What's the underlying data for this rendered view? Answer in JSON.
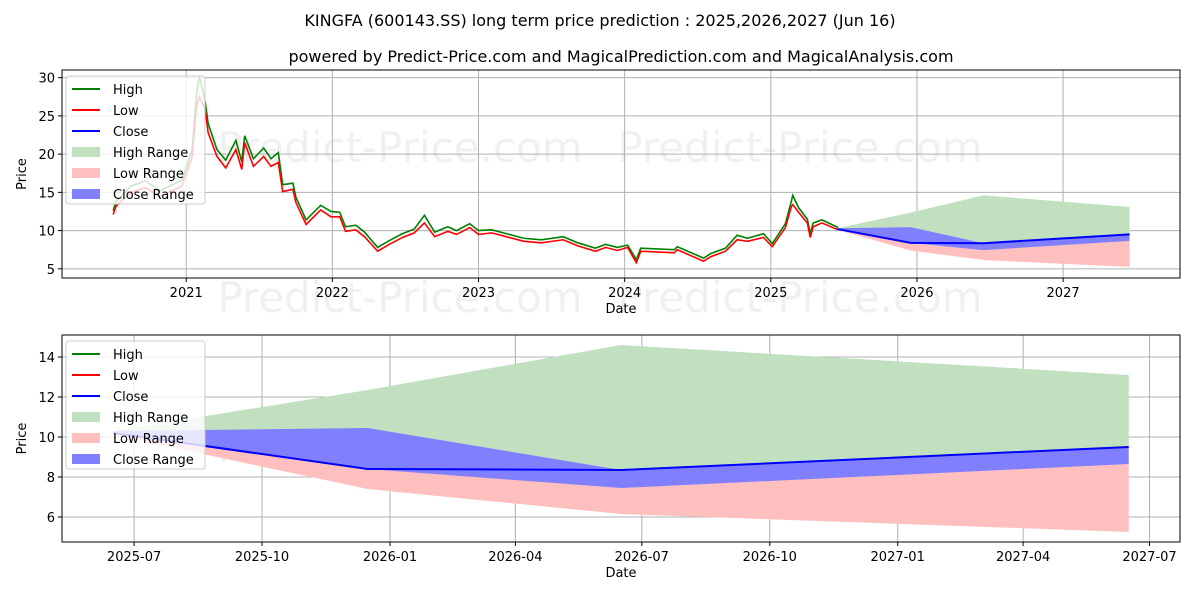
{
  "title": "KINGFA (600143.SS) long term price prediction : 2025,2026,2027 (Jun 16)",
  "subtitle": "powered by Predict-Price.com and MagicalPrediction.com and MagicalAnalysis.com",
  "watermark": "Predict-Price.com",
  "colors": {
    "high": "#008000",
    "low": "#ff0000",
    "close": "#0000ff",
    "high_range": "#c0e0c0",
    "low_range": "#ffbfbf",
    "close_range": "#8080ff"
  },
  "legend": [
    "High",
    "Low",
    "Close",
    "High Range",
    "Low Range",
    "Close Range"
  ],
  "chart_data": [
    {
      "type": "line",
      "xlabel": "Date",
      "ylabel": "Price",
      "xlim": [
        2020.15,
        2027.8
      ],
      "ylim": [
        3.8,
        31
      ],
      "grid": true,
      "legend_position": "top-left",
      "xticks": [
        {
          "v": 2021,
          "label": "2021"
        },
        {
          "v": 2022,
          "label": "2022"
        },
        {
          "v": 2023,
          "label": "2023"
        },
        {
          "v": 2024,
          "label": "2024"
        },
        {
          "v": 2025,
          "label": "2025"
        },
        {
          "v": 2026,
          "label": "2026"
        },
        {
          "v": 2027,
          "label": "2027"
        }
      ],
      "yticks": [
        {
          "v": 5,
          "label": "5"
        },
        {
          "v": 10,
          "label": "10"
        },
        {
          "v": 15,
          "label": "15"
        },
        {
          "v": 20,
          "label": "20"
        },
        {
          "v": 25,
          "label": "25"
        },
        {
          "v": 30,
          "label": "30"
        }
      ],
      "history_x": [
        2020.5,
        2020.52,
        2020.62,
        2020.72,
        2020.82,
        2020.97,
        2021.04,
        2021.07,
        2021.09,
        2021.13,
        2021.15,
        2021.21,
        2021.27,
        2021.34,
        2021.38,
        2021.4,
        2021.46,
        2021.53,
        2021.58,
        2021.63,
        2021.66,
        2021.73,
        2021.75,
        2021.82,
        2021.92,
        2021.99,
        2022.05,
        2022.09,
        2022.16,
        2022.22,
        2022.31,
        2022.39,
        2022.48,
        2022.56,
        2022.63,
        2022.7,
        2022.79,
        2022.85,
        2022.94,
        2023.0,
        2023.09,
        2023.19,
        2023.31,
        2023.43,
        2023.58,
        2023.68,
        2023.8,
        2023.87,
        2023.95,
        2024.02,
        2024.08,
        2024.11,
        2024.34,
        2024.36,
        2024.54,
        2024.59,
        2024.69,
        2024.77,
        2024.84,
        2024.95,
        2025.01,
        2025.1,
        2025.14,
        2025.15,
        2025.19,
        2025.25,
        2025.27,
        2025.29,
        2025.35,
        2025.46
      ],
      "high": [
        12.6,
        13.8,
        15.8,
        16.5,
        15.2,
        16.6,
        20.5,
        27.8,
        30.2,
        26.8,
        24.0,
        20.6,
        19.2,
        21.8,
        19.0,
        22.4,
        19.4,
        20.8,
        19.4,
        20.2,
        16.0,
        16.2,
        14.4,
        11.4,
        13.3,
        12.5,
        12.4,
        10.5,
        10.7,
        9.8,
        7.8,
        8.7,
        9.6,
        10.2,
        12.0,
        9.8,
        10.5,
        10.0,
        10.9,
        10.0,
        10.1,
        9.6,
        9.0,
        8.8,
        9.2,
        8.4,
        7.7,
        8.2,
        7.8,
        8.1,
        6.2,
        7.7,
        7.5,
        7.9,
        6.4,
        7.0,
        7.7,
        9.4,
        9.0,
        9.6,
        8.3,
        10.9,
        13.8,
        14.6,
        13.0,
        11.5,
        9.6,
        11.0,
        11.4,
        10.4
      ],
      "low": [
        12.1,
        13.2,
        15.0,
        15.6,
        14.5,
        15.8,
        19.6,
        26.2,
        27.5,
        25.8,
        22.8,
        19.7,
        18.2,
        20.6,
        18.0,
        21.5,
        18.4,
        19.7,
        18.4,
        18.9,
        15.1,
        15.4,
        13.7,
        10.8,
        12.7,
        11.8,
        11.8,
        9.9,
        10.1,
        9.2,
        7.3,
        8.2,
        9.1,
        9.7,
        11.0,
        9.2,
        9.9,
        9.5,
        10.4,
        9.5,
        9.7,
        9.2,
        8.6,
        8.4,
        8.8,
        8.0,
        7.3,
        7.8,
        7.4,
        7.8,
        5.8,
        7.3,
        7.1,
        7.5,
        6.0,
        6.6,
        7.3,
        8.8,
        8.6,
        9.1,
        7.9,
        10.4,
        13.1,
        13.4,
        12.4,
        11.0,
        9.1,
        10.5,
        11.0,
        10.1
      ]
    },
    {
      "type": "area",
      "xlabel": "Date",
      "ylabel": "Price",
      "xlim": [
        2025.354,
        2027.556
      ],
      "ylim": [
        4.75,
        15.1
      ],
      "grid": true,
      "legend_position": "top-left",
      "xticks": [
        {
          "v": 2025.496,
          "label": "2025-07"
        },
        {
          "v": 2025.748,
          "label": "2025-10"
        },
        {
          "v": 2026.0,
          "label": "2026-01"
        },
        {
          "v": 2026.247,
          "label": "2026-04"
        },
        {
          "v": 2026.496,
          "label": "2026-07"
        },
        {
          "v": 2026.748,
          "label": "2026-10"
        },
        {
          "v": 2027.0,
          "label": "2027-01"
        },
        {
          "v": 2027.247,
          "label": "2027-04"
        },
        {
          "v": 2027.496,
          "label": "2027-07"
        }
      ],
      "yticks": [
        {
          "v": 6,
          "label": "6"
        },
        {
          "v": 8,
          "label": "8"
        },
        {
          "v": 10,
          "label": "10"
        },
        {
          "v": 12,
          "label": "12"
        },
        {
          "v": 14,
          "label": "14"
        }
      ]
    }
  ],
  "forecast": {
    "dates": [
      "2025-06-16",
      "2025-12-16",
      "2026-06-16",
      "2027-06-16"
    ],
    "x": [
      2025.455,
      2025.956,
      2026.455,
      2027.455
    ],
    "close": [
      10.2,
      8.4,
      8.35,
      9.5
    ],
    "high_range_top": [
      10.3,
      12.35,
      14.6,
      13.1
    ],
    "high_range_bottom": [
      10.2,
      8.4,
      8.35,
      9.5
    ],
    "close_range_top": [
      10.3,
      10.45,
      8.35,
      9.5
    ],
    "close_range_bottom": [
      10.2,
      8.4,
      7.45,
      8.65
    ],
    "low_range_top": [
      10.2,
      8.4,
      8.35,
      8.65
    ],
    "low_range_bottom": [
      10.1,
      7.4,
      6.15,
      5.25
    ]
  }
}
